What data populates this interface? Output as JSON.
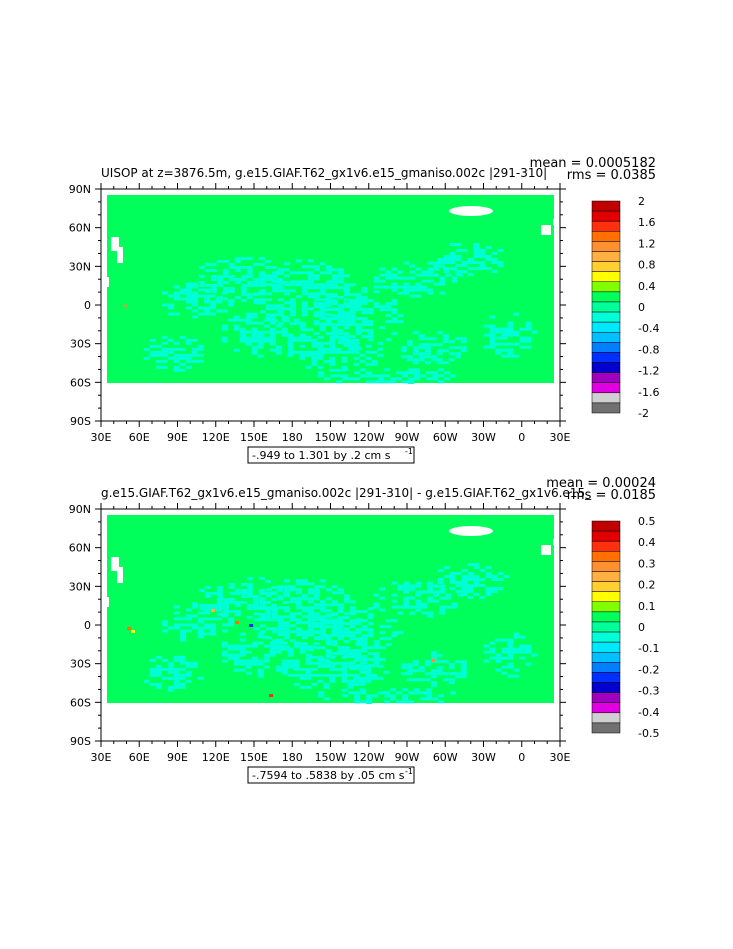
{
  "chart_data": [
    {
      "type": "heatmap",
      "title": "UISOP at z=3876.5m, g.e15.GIAF.T62_gx1v6.e15_gmaniso.002c |291-310|",
      "stats": {
        "mean": "mean = 0.0005182",
        "rms": "rms = 0.0385"
      },
      "range_label": "-.949 to 1.301 by .2 cm s",
      "range_sup": "-1",
      "x_ticks": [
        "30E",
        "60E",
        "90E",
        "120E",
        "150E",
        "180",
        "150W",
        "120W",
        "90W",
        "60W",
        "30W",
        "0",
        "30E"
      ],
      "y_ticks": [
        "90N",
        "60N",
        "30N",
        "0",
        "30S",
        "60S",
        "90S"
      ],
      "colorbar": {
        "labels": [
          "2",
          "1.6",
          "1.2",
          "0.8",
          "0.4",
          "0",
          "-0.4",
          "-0.8",
          "-1.2",
          "-1.6",
          "-2"
        ],
        "colors": [
          "#c00000",
          "#e00000",
          "#ff3010",
          "#ff7000",
          "#ff9030",
          "#ffb040",
          "#ffd030",
          "#ffff00",
          "#80ff00",
          "#00ff5a",
          "#00ff9a",
          "#00ffd8",
          "#00e8ff",
          "#00c0ff",
          "#0080ff",
          "#0030ff",
          "#0000d0",
          "#a000c0",
          "#e000e0",
          "#d0d0d0",
          "#707070"
        ]
      }
    },
    {
      "type": "heatmap",
      "title": "g.e15.GIAF.T62_gx1v6.e15_gmaniso.002c |291-310| - g.e15.GIAF.T62_gx1v6.e15_",
      "stats": {
        "mean": "mean = 0.00024",
        "rms": "rms = 0.0185"
      },
      "range_label": "-.7594 to .5838 by .05 cm s",
      "range_sup": "-1",
      "x_ticks": [
        "30E",
        "60E",
        "90E",
        "120E",
        "150E",
        "180",
        "150W",
        "120W",
        "90W",
        "60W",
        "30W",
        "0",
        "30E"
      ],
      "y_ticks": [
        "90N",
        "60N",
        "30N",
        "0",
        "30S",
        "60S",
        "90S"
      ],
      "colorbar": {
        "labels": [
          "0.5",
          "0.4",
          "0.3",
          "0.2",
          "0.1",
          "0",
          "-0.1",
          "-0.2",
          "-0.3",
          "-0.4",
          "-0.5"
        ],
        "colors": [
          "#c00000",
          "#e00000",
          "#ff3010",
          "#ff7000",
          "#ff9030",
          "#ffb040",
          "#ffd030",
          "#ffff00",
          "#80ff00",
          "#00ff5a",
          "#00ff9a",
          "#00ffd8",
          "#00e8ff",
          "#00c0ff",
          "#0080ff",
          "#0030ff",
          "#0000d0",
          "#a000c0",
          "#e000e0",
          "#d0d0d0",
          "#707070"
        ]
      }
    }
  ]
}
